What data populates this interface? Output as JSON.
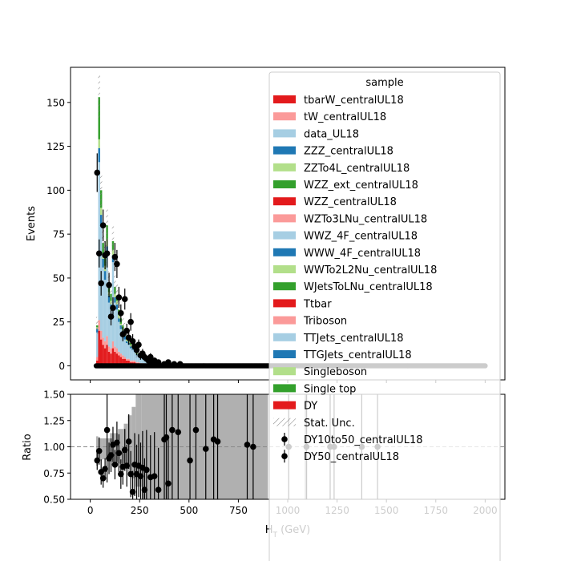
{
  "chart_data": [
    {
      "type": "bar",
      "panel": "main",
      "ylabel": "Events",
      "xlim": [
        -100,
        2100
      ],
      "ylim": [
        -8,
        170
      ],
      "yticks": [
        0,
        25,
        50,
        75,
        100,
        125,
        150
      ],
      "colors": {
        "red": "#e31a1c",
        "pink": "#fb9a99",
        "lightblue": "#a6cee3",
        "blue": "#1f78b4",
        "lightgreen": "#b2df8a",
        "green": "#33a02c"
      },
      "legend": {
        "title": "sample",
        "placement": "upper right",
        "entries": [
          {
            "label": "tbarW_centralUL18",
            "kind": "patch",
            "color": "red"
          },
          {
            "label": "tW_centralUL18",
            "kind": "patch",
            "color": "pink"
          },
          {
            "label": "data_UL18",
            "kind": "patch",
            "color": "lightblue"
          },
          {
            "label": "ZZZ_centralUL18",
            "kind": "patch",
            "color": "blue"
          },
          {
            "label": "ZZTo4L_centralUL18",
            "kind": "patch",
            "color": "lightgreen"
          },
          {
            "label": "WZZ_ext_centralUL18",
            "kind": "patch",
            "color": "green"
          },
          {
            "label": "WZZ_centralUL18",
            "kind": "patch",
            "color": "red"
          },
          {
            "label": "WZTo3LNu_centralUL18",
            "kind": "patch",
            "color": "pink"
          },
          {
            "label": "WWZ_4F_centralUL18",
            "kind": "patch",
            "color": "lightblue"
          },
          {
            "label": "WWW_4F_centralUL18",
            "kind": "patch",
            "color": "blue"
          },
          {
            "label": "WWTo2L2Nu_centralUL18",
            "kind": "patch",
            "color": "lightgreen"
          },
          {
            "label": "WJetsToLNu_centralUL18",
            "kind": "patch",
            "color": "green"
          },
          {
            "label": "Ttbar",
            "kind": "patch",
            "color": "red"
          },
          {
            "label": "Triboson",
            "kind": "patch",
            "color": "pink"
          },
          {
            "label": "TTJets_centralUL18",
            "kind": "patch",
            "color": "lightblue"
          },
          {
            "label": "TTGJets_centralUL18",
            "kind": "patch",
            "color": "blue"
          },
          {
            "label": "Singleboson",
            "kind": "patch",
            "color": "lightgreen"
          },
          {
            "label": "Single top",
            "kind": "patch",
            "color": "green"
          },
          {
            "label": "DY",
            "kind": "patch",
            "color": "red"
          },
          {
            "label": "Stat. Unc.",
            "kind": "hatch",
            "color": "#777777"
          },
          {
            "label": "DY10to50_centralUL18",
            "kind": "marker",
            "color": "#000000"
          },
          {
            "label": "DY50_centralUL18",
            "kind": "marker",
            "color": "#000000"
          }
        ]
      },
      "bin_width": 10,
      "mc_stack": [
        {
          "x": 35,
          "red": 3,
          "pink": 2,
          "lightblue": 14,
          "blue": 2,
          "lightgreen": 1,
          "green": 1
        },
        {
          "x": 45,
          "red": 20,
          "pink": 6,
          "lightblue": 90,
          "blue": 8,
          "lightgreen": 5,
          "green": 24
        },
        {
          "x": 55,
          "red": 15,
          "pink": 5,
          "lightblue": 60,
          "blue": 6,
          "lightgreen": 4,
          "green": 10
        },
        {
          "x": 65,
          "red": 12,
          "pink": 4,
          "lightblue": 40,
          "blue": 5,
          "lightgreen": 3,
          "green": 6
        },
        {
          "x": 75,
          "red": 10,
          "pink": 4,
          "lightblue": 35,
          "blue": 5,
          "lightgreen": 3,
          "green": 6
        },
        {
          "x": 85,
          "red": 12,
          "pink": 5,
          "lightblue": 45,
          "blue": 6,
          "lightgreen": 4,
          "green": 8
        },
        {
          "x": 95,
          "red": 8,
          "pink": 3,
          "lightblue": 25,
          "blue": 4,
          "lightgreen": 2,
          "green": 5
        },
        {
          "x": 105,
          "red": 7,
          "pink": 3,
          "lightblue": 22,
          "blue": 3,
          "lightgreen": 2,
          "green": 4
        },
        {
          "x": 115,
          "red": 10,
          "pink": 4,
          "lightblue": 45,
          "blue": 4,
          "lightgreen": 3,
          "green": 5
        },
        {
          "x": 125,
          "red": 8,
          "pink": 3,
          "lightblue": 25,
          "blue": 3,
          "lightgreen": 2,
          "green": 4
        },
        {
          "x": 135,
          "red": 7,
          "pink": 3,
          "lightblue": 22,
          "blue": 3,
          "lightgreen": 2,
          "green": 3
        },
        {
          "x": 145,
          "red": 6,
          "pink": 2,
          "lightblue": 17,
          "blue": 2,
          "lightgreen": 2,
          "green": 3
        },
        {
          "x": 155,
          "red": 5,
          "pink": 2,
          "lightblue": 14,
          "blue": 2,
          "lightgreen": 1,
          "green": 3
        },
        {
          "x": 165,
          "red": 4,
          "pink": 2,
          "lightblue": 12,
          "blue": 2,
          "lightgreen": 1,
          "green": 2
        },
        {
          "x": 175,
          "red": 4,
          "pink": 1,
          "lightblue": 10,
          "blue": 2,
          "lightgreen": 1,
          "green": 2
        },
        {
          "x": 185,
          "red": 3,
          "pink": 1,
          "lightblue": 9,
          "blue": 1,
          "lightgreen": 1,
          "green": 2
        },
        {
          "x": 195,
          "red": 3,
          "pink": 1,
          "lightblue": 8,
          "blue": 1,
          "lightgreen": 1,
          "green": 1
        },
        {
          "x": 205,
          "red": 2,
          "pink": 1,
          "lightblue": 7,
          "blue": 1,
          "lightgreen": 1,
          "green": 1
        },
        {
          "x": 215,
          "red": 2,
          "pink": 1,
          "lightblue": 6,
          "blue": 1,
          "lightgreen": 0.5,
          "green": 1
        },
        {
          "x": 225,
          "red": 2,
          "pink": 1,
          "lightblue": 5,
          "blue": 1,
          "lightgreen": 0.5,
          "green": 1
        },
        {
          "x": 235,
          "red": 1.5,
          "pink": 0.5,
          "lightblue": 4,
          "blue": 0.5,
          "lightgreen": 0.5,
          "green": 0.5
        },
        {
          "x": 245,
          "red": 1.5,
          "pink": 0.5,
          "lightblue": 3.5,
          "blue": 0.5,
          "lightgreen": 0.5,
          "green": 0.5
        },
        {
          "x": 255,
          "red": 1,
          "pink": 0.5,
          "lightblue": 3,
          "blue": 0.5,
          "lightgreen": 0.3,
          "green": 0.5
        },
        {
          "x": 265,
          "red": 1,
          "pink": 0.5,
          "lightblue": 2.5,
          "blue": 0.4,
          "lightgreen": 0.3,
          "green": 0.4
        },
        {
          "x": 275,
          "red": 1,
          "pink": 0.4,
          "lightblue": 2,
          "blue": 0.3,
          "lightgreen": 0.2,
          "green": 0.3
        },
        {
          "x": 285,
          "red": 0.8,
          "pink": 0.3,
          "lightblue": 1.8,
          "blue": 0.3,
          "lightgreen": 0.2,
          "green": 0.3
        },
        {
          "x": 295,
          "red": 0.7,
          "pink": 0.3,
          "lightblue": 1.5,
          "blue": 0.2,
          "lightgreen": 0.2,
          "green": 0.2
        },
        {
          "x": 305,
          "red": 0.6,
          "pink": 0.2,
          "lightblue": 1.2,
          "blue": 0.2,
          "lightgreen": 0.1,
          "green": 0.2
        }
      ],
      "data_points": [
        {
          "x": 35,
          "y": 110,
          "err": 11
        },
        {
          "x": 45,
          "y": 64,
          "err": 8
        },
        {
          "x": 55,
          "y": 47,
          "err": 7
        },
        {
          "x": 65,
          "y": 80,
          "err": 9
        },
        {
          "x": 75,
          "y": 63,
          "err": 8
        },
        {
          "x": 85,
          "y": 64,
          "err": 8
        },
        {
          "x": 95,
          "y": 46,
          "err": 7
        },
        {
          "x": 105,
          "y": 28,
          "err": 5
        },
        {
          "x": 115,
          "y": 33,
          "err": 6
        },
        {
          "x": 125,
          "y": 62,
          "err": 8
        },
        {
          "x": 135,
          "y": 58,
          "err": 8
        },
        {
          "x": 145,
          "y": 39,
          "err": 6
        },
        {
          "x": 155,
          "y": 30,
          "err": 5
        },
        {
          "x": 165,
          "y": 18,
          "err": 4
        },
        {
          "x": 175,
          "y": 38,
          "err": 6
        },
        {
          "x": 185,
          "y": 20,
          "err": 4
        },
        {
          "x": 195,
          "y": 16,
          "err": 4
        },
        {
          "x": 205,
          "y": 25,
          "err": 5
        },
        {
          "x": 215,
          "y": 14,
          "err": 4
        },
        {
          "x": 225,
          "y": 11,
          "err": 3
        },
        {
          "x": 235,
          "y": 9,
          "err": 3
        },
        {
          "x": 245,
          "y": 12,
          "err": 3
        },
        {
          "x": 255,
          "y": 6,
          "err": 2.5
        },
        {
          "x": 265,
          "y": 7,
          "err": 2.6
        },
        {
          "x": 275,
          "y": 5,
          "err": 2.2
        },
        {
          "x": 285,
          "y": 4,
          "err": 2
        },
        {
          "x": 295,
          "y": 3,
          "err": 1.7
        },
        {
          "x": 305,
          "y": 5,
          "err": 2.2
        },
        {
          "x": 315,
          "y": 2,
          "err": 1.4
        },
        {
          "x": 325,
          "y": 3,
          "err": 1.7
        },
        {
          "x": 345,
          "y": 2,
          "err": 1.4
        },
        {
          "x": 375,
          "y": 1,
          "err": 1
        },
        {
          "x": 395,
          "y": 2,
          "err": 1.4
        },
        {
          "x": 425,
          "y": 1,
          "err": 1
        },
        {
          "x": 455,
          "y": 1,
          "err": 1
        }
      ],
      "zero_points_x_range": [
        30,
        2000
      ],
      "zero_points_step": 5
    },
    {
      "type": "scatter",
      "panel": "ratio",
      "xlabel": "H_T (GeV)",
      "ylabel": "Ratio",
      "xlim": [
        -100,
        2100
      ],
      "ylim": [
        0.5,
        1.5
      ],
      "xticks": [
        0,
        250,
        500,
        750,
        1000,
        1250,
        1500,
        1750,
        2000
      ],
      "yticks": [
        0.5,
        0.75,
        1.0,
        1.25,
        1.5
      ],
      "reference_line": 1.0,
      "unc_band": [
        {
          "x0": 30,
          "x1": 40,
          "lo": 0.82,
          "hi": 1.1
        },
        {
          "x0": 40,
          "x1": 60,
          "lo": 0.87,
          "hi": 1.08
        },
        {
          "x0": 60,
          "x1": 100,
          "lo": 0.88,
          "hi": 1.08
        },
        {
          "x0": 100,
          "x1": 140,
          "lo": 0.86,
          "hi": 1.13
        },
        {
          "x0": 140,
          "x1": 170,
          "lo": 0.84,
          "hi": 1.17
        },
        {
          "x0": 170,
          "x1": 190,
          "lo": 0.8,
          "hi": 1.22
        },
        {
          "x0": 190,
          "x1": 210,
          "lo": 0.75,
          "hi": 1.3
        },
        {
          "x0": 210,
          "x1": 230,
          "lo": 0.7,
          "hi": 1.38
        },
        {
          "x0": 230,
          "x1": 260,
          "lo": 0.62,
          "hi": 1.5
        },
        {
          "x0": 260,
          "x1": 900,
          "lo": 0.5,
          "hi": 1.5
        },
        {
          "x0": 1085,
          "x1": 1100,
          "lo": 0.5,
          "hi": 1.5
        }
      ],
      "points": [
        {
          "x": 35,
          "y": 0.87,
          "err": 0.09
        },
        {
          "x": 45,
          "y": 0.96,
          "err": 0.13
        },
        {
          "x": 55,
          "y": 0.76,
          "err": 0.12
        },
        {
          "x": 65,
          "y": 0.7,
          "err": 0.09
        },
        {
          "x": 75,
          "y": 0.79,
          "err": 0.1
        },
        {
          "x": 85,
          "y": 1.16,
          "err": 0.5
        },
        {
          "x": 95,
          "y": 0.89,
          "err": 0.15
        },
        {
          "x": 105,
          "y": 0.92,
          "err": 0.16
        },
        {
          "x": 115,
          "y": 1.02,
          "err": 0.17
        },
        {
          "x": 125,
          "y": 0.83,
          "err": 0.14
        },
        {
          "x": 135,
          "y": 1.04,
          "err": 0.2
        },
        {
          "x": 145,
          "y": 0.94,
          "err": 0.18
        },
        {
          "x": 155,
          "y": 0.74,
          "err": 0.14
        },
        {
          "x": 165,
          "y": 0.81,
          "err": 0.17
        },
        {
          "x": 175,
          "y": 0.97,
          "err": 0.2
        },
        {
          "x": 185,
          "y": 0.82,
          "err": 0.2
        },
        {
          "x": 195,
          "y": 1.05,
          "err": 0.26
        },
        {
          "x": 205,
          "y": 0.74,
          "err": 0.22
        },
        {
          "x": 215,
          "y": 0.57,
          "err": 0.2
        },
        {
          "x": 225,
          "y": 0.83,
          "err": 0.3
        },
        {
          "x": 235,
          "y": 0.74,
          "err": 0.28
        },
        {
          "x": 245,
          "y": 0.82,
          "err": 0.3
        },
        {
          "x": 255,
          "y": 0.72,
          "err": 0.32
        },
        {
          "x": 265,
          "y": 0.8,
          "err": 0.35
        },
        {
          "x": 275,
          "y": 0.59,
          "err": 0.3
        },
        {
          "x": 285,
          "y": 0.78,
          "err": 0.38
        },
        {
          "x": 305,
          "y": 0.71,
          "err": 0.4
        },
        {
          "x": 325,
          "y": 0.72,
          "err": 0.42
        },
        {
          "x": 345,
          "y": 0.59,
          "err": 0.4
        },
        {
          "x": 375,
          "y": 1.07,
          "err": 0.6
        },
        {
          "x": 385,
          "y": 1.09,
          "err": 0.6
        },
        {
          "x": 395,
          "y": 0.65,
          "err": 0.45
        },
        {
          "x": 415,
          "y": 1.16,
          "err": 0.7
        },
        {
          "x": 445,
          "y": 1.14,
          "err": 0.7
        },
        {
          "x": 505,
          "y": 0.87,
          "err": 0.7
        },
        {
          "x": 535,
          "y": 1.16,
          "err": 0.8
        },
        {
          "x": 585,
          "y": 0.98,
          "err": 0.8
        },
        {
          "x": 625,
          "y": 1.07,
          "err": 0.9
        },
        {
          "x": 645,
          "y": 1.05,
          "err": 0.9
        },
        {
          "x": 795,
          "y": 1.02,
          "err": 1.0
        },
        {
          "x": 825,
          "y": 1.0,
          "err": 1.0
        },
        {
          "x": 1005,
          "y": 1.0,
          "err": 1.0
        },
        {
          "x": 1095,
          "y": 1.0,
          "err": 1.0
        },
        {
          "x": 1215,
          "y": 1.0,
          "err": 1.0
        },
        {
          "x": 1235,
          "y": 1.0,
          "err": 1.0
        },
        {
          "x": 1375,
          "y": 1.0,
          "err": 1.0
        },
        {
          "x": 1455,
          "y": 1.0,
          "err": 1.0
        }
      ]
    }
  ]
}
